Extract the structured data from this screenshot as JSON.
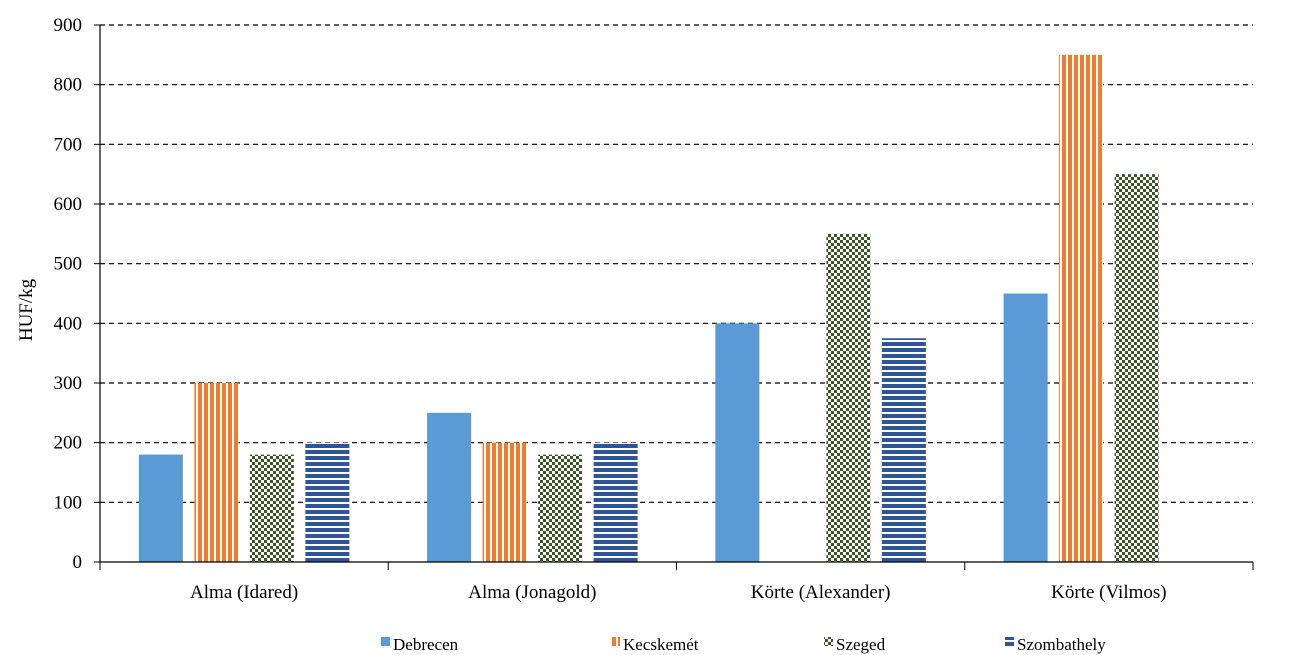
{
  "chart_data": {
    "type": "bar",
    "title": "",
    "xlabel": "",
    "ylabel": "HUF/kg",
    "ylim": [
      0,
      900
    ],
    "yticks": [
      0,
      100,
      200,
      300,
      400,
      500,
      600,
      700,
      800,
      900
    ],
    "grid": "horizontal dashed",
    "legend_position": "bottom",
    "categories": [
      "Alma (Idared)",
      "Alma (Jonagold)",
      "Körte (Alexander)",
      "Körte (Vilmos)"
    ],
    "series": [
      {
        "name": "Debrecen",
        "values": [
          180,
          250,
          400,
          450
        ],
        "color": "#5b9bd5",
        "pattern": "solid"
      },
      {
        "name": "Kecskemét",
        "values": [
          300,
          200,
          null,
          850
        ],
        "color": "#ed7d31",
        "pattern": "vertical-stripes"
      },
      {
        "name": "Szeged",
        "values": [
          180,
          180,
          550,
          650
        ],
        "color": "#375623",
        "pattern": "checker"
      },
      {
        "name": "Szombathely",
        "values": [
          200,
          200,
          375,
          null
        ],
        "color": "#2f5597",
        "pattern": "horizontal-stripes"
      }
    ]
  }
}
